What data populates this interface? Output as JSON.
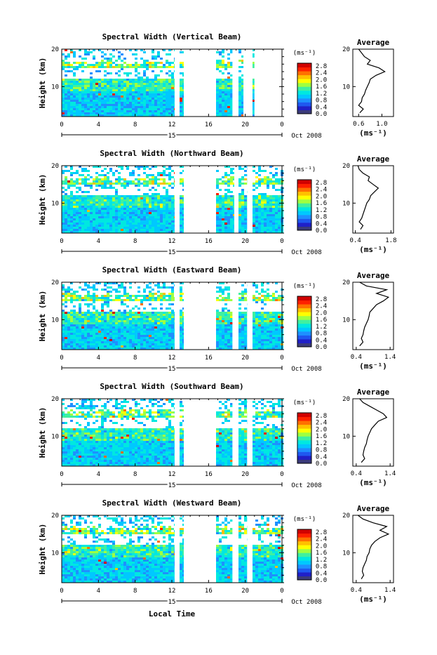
{
  "figure": {
    "x_axis_label": "Local Time",
    "date_label": "Oct 2008",
    "day_label": "15",
    "y_axis_label": "Height (km)",
    "unit_label": "(ms⁻¹)",
    "average_title": "Average",
    "colorbar_ticks": [
      "2.8",
      "2.4",
      "2.0",
      "1.6",
      "1.2",
      "0.8",
      "0.4",
      "0.0"
    ],
    "colormap": [
      "#3b3b7a",
      "#2020c8",
      "#1f58f0",
      "#1e90ff",
      "#00c8ff",
      "#00e8e0",
      "#40f0a0",
      "#a0ff40",
      "#ffff00",
      "#ffc000",
      "#ff7000",
      "#ff2000",
      "#d00000"
    ]
  },
  "chart_data": [
    {
      "type": "heatmap",
      "title": "Spectral Width (Vertical Beam)",
      "x_ticks": [
        "0",
        "4",
        "8",
        "12",
        "16",
        "20",
        "0"
      ],
      "y_ticks": [
        "20",
        "10"
      ],
      "xlim": [
        0,
        24
      ],
      "ylim": [
        2,
        20
      ],
      "data_gaps_hours": [
        [
          12.3,
          12.6
        ],
        [
          13.3,
          16.7
        ],
        [
          18.6,
          19
        ],
        [
          19.8,
          20.7
        ],
        [
          21,
          24
        ]
      ],
      "avg_profile": {
        "type": "line",
        "xlabel": "(ms⁻¹)",
        "x_ticks": [
          "0.6",
          "1.0"
        ],
        "y_ticks": [
          "20",
          "10"
        ],
        "xlim": [
          0.5,
          1.2
        ],
        "height_km": [
          3,
          4,
          5,
          6,
          7,
          8,
          9,
          10,
          11,
          12,
          13,
          14,
          15,
          16,
          17,
          18,
          19,
          20
        ],
        "width": [
          0.62,
          0.68,
          0.6,
          0.65,
          0.66,
          0.7,
          0.72,
          0.75,
          0.78,
          0.8,
          0.9,
          1.05,
          0.95,
          0.75,
          0.8,
          0.7,
          0.65,
          0.6
        ]
      }
    },
    {
      "type": "heatmap",
      "title": "Spectral Width (Northward Beam)",
      "x_ticks": [
        "0",
        "4",
        "8",
        "12",
        "16",
        "20",
        "0"
      ],
      "y_ticks": [
        "20",
        "10"
      ],
      "xlim": [
        0,
        24
      ],
      "ylim": [
        2,
        20
      ],
      "data_gaps_hours": [
        [
          12.3,
          12.6
        ],
        [
          13.3,
          16.7
        ],
        [
          18.8,
          19.1
        ],
        [
          20.2,
          20.6
        ]
      ],
      "avg_profile": {
        "type": "line",
        "xlabel": "(ms⁻¹)",
        "x_ticks": [
          "0.4",
          "1.8"
        ],
        "y_ticks": [
          "20",
          "10"
        ],
        "xlim": [
          0.3,
          1.9
        ],
        "height_km": [
          3,
          4,
          5,
          6,
          7,
          8,
          9,
          10,
          11,
          12,
          13,
          14,
          15,
          16,
          17,
          18,
          19,
          20
        ],
        "width": [
          0.6,
          0.7,
          0.55,
          0.65,
          0.7,
          0.75,
          0.8,
          0.85,
          0.95,
          1.0,
          1.15,
          1.3,
          1.1,
          0.9,
          0.95,
          0.7,
          0.55,
          0.5
        ]
      }
    },
    {
      "type": "heatmap",
      "title": "Spectral Width (Eastward Beam)",
      "x_ticks": [
        "0",
        "4",
        "8",
        "12",
        "16",
        "20",
        "0"
      ],
      "y_ticks": [
        "20",
        "10"
      ],
      "xlim": [
        0,
        24
      ],
      "ylim": [
        2,
        20
      ],
      "data_gaps_hours": [
        [
          12.3,
          12.6
        ],
        [
          13.3,
          16.7
        ],
        [
          18.6,
          19
        ],
        [
          20.2,
          20.6
        ]
      ],
      "avg_profile": {
        "type": "line",
        "xlabel": "(ms⁻¹)",
        "x_ticks": [
          "0.4",
          "1.4"
        ],
        "y_ticks": [
          "20",
          "10"
        ],
        "xlim": [
          0.3,
          1.5
        ],
        "height_km": [
          3,
          4,
          5,
          6,
          7,
          8,
          9,
          10,
          11,
          12,
          13,
          14,
          15,
          16,
          17,
          18,
          19,
          20
        ],
        "width": [
          0.5,
          0.6,
          0.55,
          0.6,
          0.62,
          0.65,
          0.7,
          0.75,
          0.78,
          0.8,
          0.9,
          1.0,
          1.2,
          1.35,
          1.0,
          1.3,
          0.7,
          0.5
        ]
      }
    },
    {
      "type": "heatmap",
      "title": "Spectral Width (Southward Beam)",
      "x_ticks": [
        "0",
        "4",
        "8",
        "12",
        "16",
        "20",
        "0"
      ],
      "y_ticks": [
        "20",
        "10"
      ],
      "xlim": [
        0,
        24
      ],
      "ylim": [
        2,
        20
      ],
      "data_gaps_hours": [
        [
          12.3,
          12.6
        ],
        [
          13.3,
          16.7
        ],
        [
          18.6,
          19
        ],
        [
          20.2,
          20.6
        ]
      ],
      "avg_profile": {
        "type": "line",
        "xlabel": "(ms⁻¹)",
        "x_ticks": [
          "0.4",
          "1.4"
        ],
        "y_ticks": [
          "20",
          "10"
        ],
        "xlim": [
          0.3,
          1.5
        ],
        "height_km": [
          3,
          4,
          5,
          6,
          7,
          8,
          9,
          10,
          11,
          12,
          13,
          14,
          15,
          16,
          17,
          18,
          19,
          20
        ],
        "width": [
          0.55,
          0.65,
          0.6,
          0.62,
          0.65,
          0.7,
          0.72,
          0.75,
          0.8,
          0.85,
          0.95,
          1.05,
          1.3,
          1.2,
          1.0,
          0.8,
          0.6,
          0.5
        ]
      }
    },
    {
      "type": "heatmap",
      "title": "Spectral Width (Westward Beam)",
      "x_ticks": [
        "0",
        "4",
        "8",
        "12",
        "16",
        "20",
        "0"
      ],
      "y_ticks": [
        "20",
        "10"
      ],
      "xlim": [
        0,
        24
      ],
      "ylim": [
        2,
        20
      ],
      "data_gaps_hours": [
        [
          12.3,
          12.6
        ],
        [
          13.3,
          16.7
        ],
        [
          18.6,
          19
        ],
        [
          20.2,
          20.6
        ]
      ],
      "avg_profile": {
        "type": "line",
        "xlabel": "(ms⁻¹)",
        "x_ticks": [
          "0.4",
          "1.4"
        ],
        "y_ticks": [
          "20",
          "10"
        ],
        "xlim": [
          0.3,
          1.5
        ],
        "height_km": [
          3,
          4,
          5,
          6,
          7,
          8,
          9,
          10,
          11,
          12,
          13,
          14,
          15,
          16,
          17,
          18,
          19,
          20
        ],
        "width": [
          0.55,
          0.62,
          0.58,
          0.6,
          0.65,
          0.7,
          0.72,
          0.78,
          0.8,
          0.85,
          0.95,
          1.1,
          1.35,
          1.1,
          1.3,
          0.9,
          0.6,
          0.45
        ]
      }
    }
  ]
}
